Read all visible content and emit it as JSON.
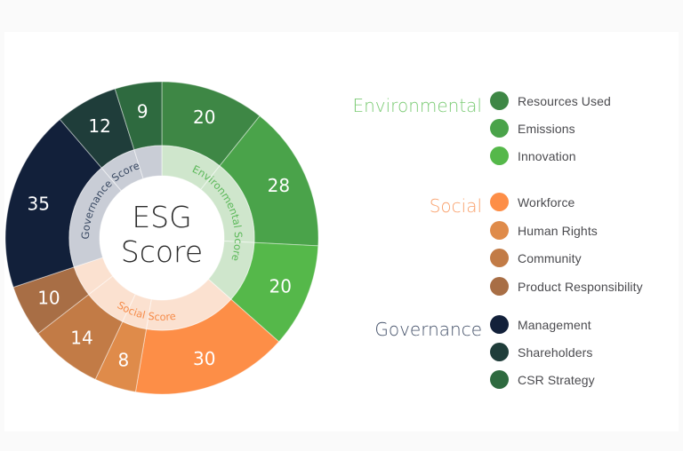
{
  "chart_data": {
    "type": "sunburst",
    "title": "ESG Score",
    "center_label": [
      "ESG",
      "Score"
    ],
    "start_angle_deg": 0,
    "direction": "clockwise",
    "inner_ring": [
      {
        "name": "Environmental Score",
        "value": 68,
        "color": "#cfe6cc",
        "text_color": "#5cb85a"
      },
      {
        "name": "Social Score",
        "value": 62,
        "color": "#fbe1d0",
        "text_color": "#f68c4a"
      },
      {
        "name": "Governance Score",
        "value": 56,
        "color": "#c9cdd6",
        "text_color": "#3a4a63"
      }
    ],
    "outer_ring": [
      {
        "name": "Resources Used",
        "group": "Environmental",
        "value": 20,
        "color": "#3e8745"
      },
      {
        "name": "Emissions",
        "group": "Environmental",
        "value": 28,
        "color": "#4aa34a"
      },
      {
        "name": "Innovation",
        "group": "Environmental",
        "value": 20,
        "color": "#55b84a"
      },
      {
        "name": "Workforce",
        "group": "Social",
        "value": 30,
        "color": "#fd8e47"
      },
      {
        "name": "Human Rights",
        "group": "Social",
        "value": 8,
        "color": "#df8b4a"
      },
      {
        "name": "Community",
        "group": "Social",
        "value": 14,
        "color": "#c27b46"
      },
      {
        "name": "Product Responsibility",
        "group": "Social",
        "value": 10,
        "color": "#a86e45"
      },
      {
        "name": "Management",
        "group": "Governance",
        "value": 35,
        "color": "#12203a"
      },
      {
        "name": "Shareholders",
        "group": "Governance",
        "value": 12,
        "color": "#1f3d3a"
      },
      {
        "name": "CSR Strategy",
        "group": "Governance",
        "value": 9,
        "color": "#2e6a3f"
      }
    ],
    "legend_position": "right"
  },
  "legend": {
    "groups": [
      {
        "title": "Environmental",
        "color": "#7bcb74",
        "items": [
          {
            "label": "Resources Used",
            "color": "#3e8745"
          },
          {
            "label": "Emissions",
            "color": "#4aa34a"
          },
          {
            "label": "Innovation",
            "color": "#55b84a"
          }
        ]
      },
      {
        "title": "Social",
        "color": "#f9a06b",
        "items": [
          {
            "label": "Workforce",
            "color": "#fd8e47"
          },
          {
            "label": "Human Rights",
            "color": "#df8b4a"
          },
          {
            "label": "Community",
            "color": "#c27b46"
          },
          {
            "label": "Product Responsibility",
            "color": "#a86e45"
          }
        ]
      },
      {
        "title": "Governance",
        "color": "#45526a",
        "items": [
          {
            "label": "Management",
            "color": "#12203a"
          },
          {
            "label": "Shareholders",
            "color": "#1f3d3a"
          },
          {
            "label": "CSR Strategy",
            "color": "#2e6a3f"
          }
        ]
      }
    ]
  }
}
